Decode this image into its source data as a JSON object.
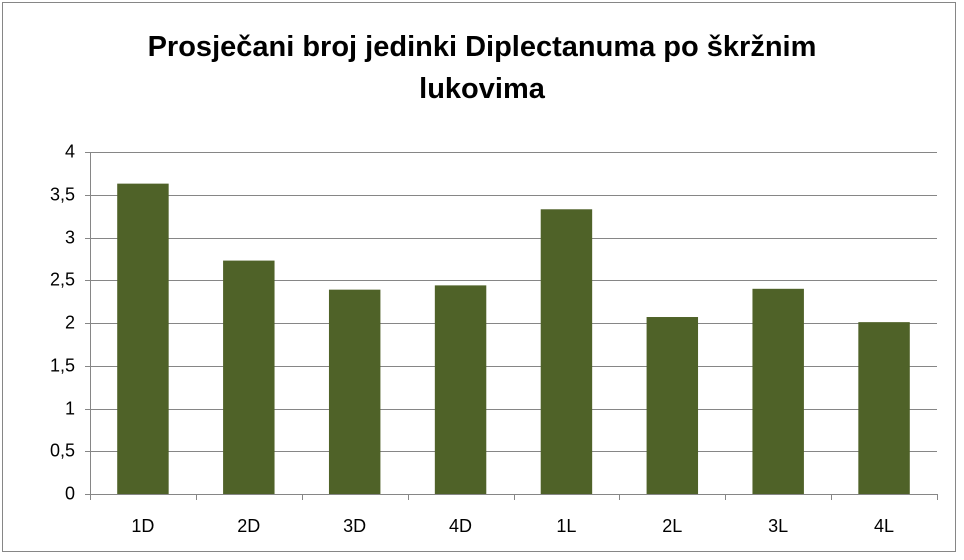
{
  "chart_data": {
    "type": "bar",
    "title": "Prosječani broj jedinki Diplectanuma po škržnim lukovima",
    "categories": [
      "1D",
      "2D",
      "3D",
      "4D",
      "1L",
      "2L",
      "3L",
      "4L"
    ],
    "values": [
      3.63,
      2.73,
      2.39,
      2.44,
      3.33,
      2.07,
      2.4,
      2.01
    ],
    "color": "#4f6228",
    "ylim": [
      0,
      4
    ],
    "yticks": [
      0,
      {
        "value": 0.5,
        "label": "0,5"
      },
      1,
      {
        "value": 1.5,
        "label": "1,5"
      },
      2,
      {
        "value": 2.5,
        "label": "2,5"
      },
      3,
      {
        "value": 3.5,
        "label": "3,5"
      },
      4
    ],
    "grid": true
  }
}
